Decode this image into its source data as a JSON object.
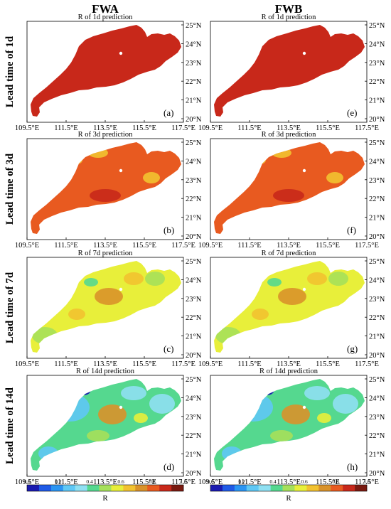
{
  "columns": [
    {
      "id": "fwa",
      "title": "FWA"
    },
    {
      "id": "fwb",
      "title": "FWB"
    }
  ],
  "rows": [
    {
      "id": "1d",
      "label": "Lead time of 1d",
      "subtitle": "R of 1d prediction"
    },
    {
      "id": "3d",
      "label": "Lead time of 3d",
      "subtitle": "R of 3d prediction"
    },
    {
      "id": "7d",
      "label": "Lead time of 7d",
      "subtitle": "R of 7d prediction"
    },
    {
      "id": "14d",
      "label": "Lead time of 14d",
      "subtitle": "R of 14d prediction"
    }
  ],
  "panels": [
    {
      "id": "a",
      "label": "(a)",
      "column": "fwa",
      "row": "1d",
      "dominant_r": 0.9
    },
    {
      "id": "b",
      "label": "(b)",
      "column": "fwa",
      "row": "3d",
      "dominant_r": 0.85
    },
    {
      "id": "c",
      "label": "(c)",
      "column": "fwa",
      "row": "7d",
      "dominant_r": 0.65
    },
    {
      "id": "d",
      "label": "(d)",
      "column": "fwa",
      "row": "14d",
      "dominant_r": 0.55
    },
    {
      "id": "e",
      "label": "(e)",
      "column": "fwb",
      "row": "1d",
      "dominant_r": 0.9
    },
    {
      "id": "f",
      "label": "(f)",
      "column": "fwb",
      "row": "3d",
      "dominant_r": 0.85
    },
    {
      "id": "g",
      "label": "(g)",
      "column": "fwb",
      "row": "7d",
      "dominant_r": 0.65
    },
    {
      "id": "h",
      "label": "(h)",
      "column": "fwb",
      "row": "14d",
      "dominant_r": 0.55
    }
  ],
  "axes": {
    "lon_ticks": [
      "109.5°E",
      "111.5°E",
      "113.5°E",
      "115.5°E",
      "117.5°E"
    ],
    "lat_ticks": [
      "25°N",
      "24°N",
      "23°N",
      "22°N",
      "21°N",
      "20°N"
    ],
    "lon_range": [
      109.5,
      117.5
    ],
    "lat_range": [
      20,
      25
    ]
  },
  "colorbar": {
    "label": "R",
    "ticks": [
      "0.0",
      "0.2",
      "0.4",
      "0.6",
      "0.8",
      "1.0"
    ],
    "range": [
      0,
      1
    ],
    "colors": [
      "#1a1ab0",
      "#1f5ae6",
      "#2b95f2",
      "#5fc8f5",
      "#8fe0f2",
      "#55d88f",
      "#a6e05a",
      "#e8ef3a",
      "#f2c230",
      "#d9922a",
      "#e85a20",
      "#c8281a",
      "#7a1a10"
    ]
  }
}
